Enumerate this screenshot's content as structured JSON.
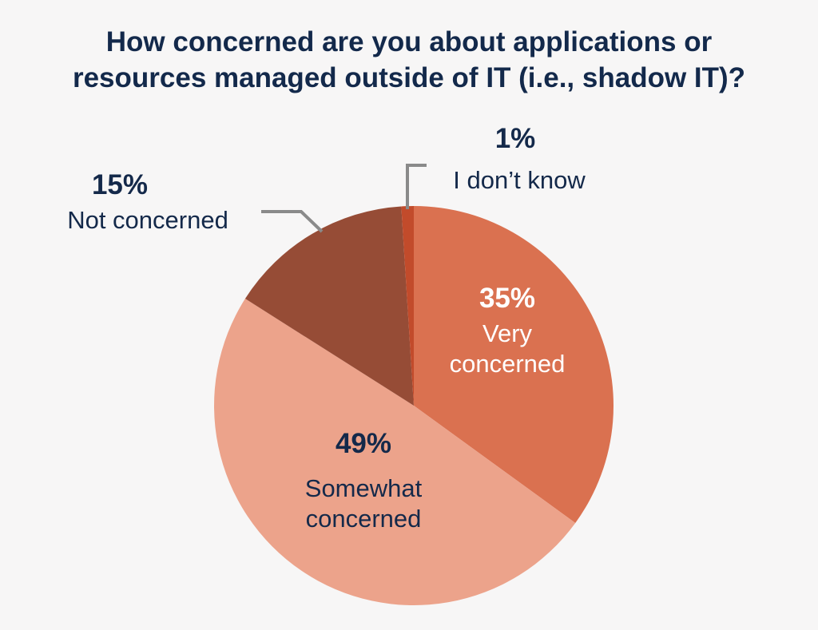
{
  "chart_data": {
    "type": "pie",
    "title": "How concerned are you about applications or resources managed outside of IT (i.e., shadow IT)?",
    "title_lines": [
      "How concerned are you about applications or",
      "resources managed outside of IT (i.e., shadow IT)?"
    ],
    "slices": [
      {
        "label": "Very concerned",
        "label_lines": [
          "Very",
          "concerned"
        ],
        "value": 35,
        "pct_label": "35%",
        "color": "#da7150"
      },
      {
        "label": "Somewhat concerned",
        "label_lines": [
          "Somewhat",
          "concerned"
        ],
        "value": 49,
        "pct_label": "49%",
        "color": "#eca38b"
      },
      {
        "label": "Not concerned",
        "label_lines": [
          "Not concerned"
        ],
        "value": 15,
        "pct_label": "15%",
        "color": "#964c36"
      },
      {
        "label": "I don’t know",
        "label_lines": [
          "I don’t know"
        ],
        "value": 1,
        "pct_label": "1%",
        "color": "#c24b2b"
      }
    ],
    "start_angle": "top",
    "direction": "clockwise"
  }
}
